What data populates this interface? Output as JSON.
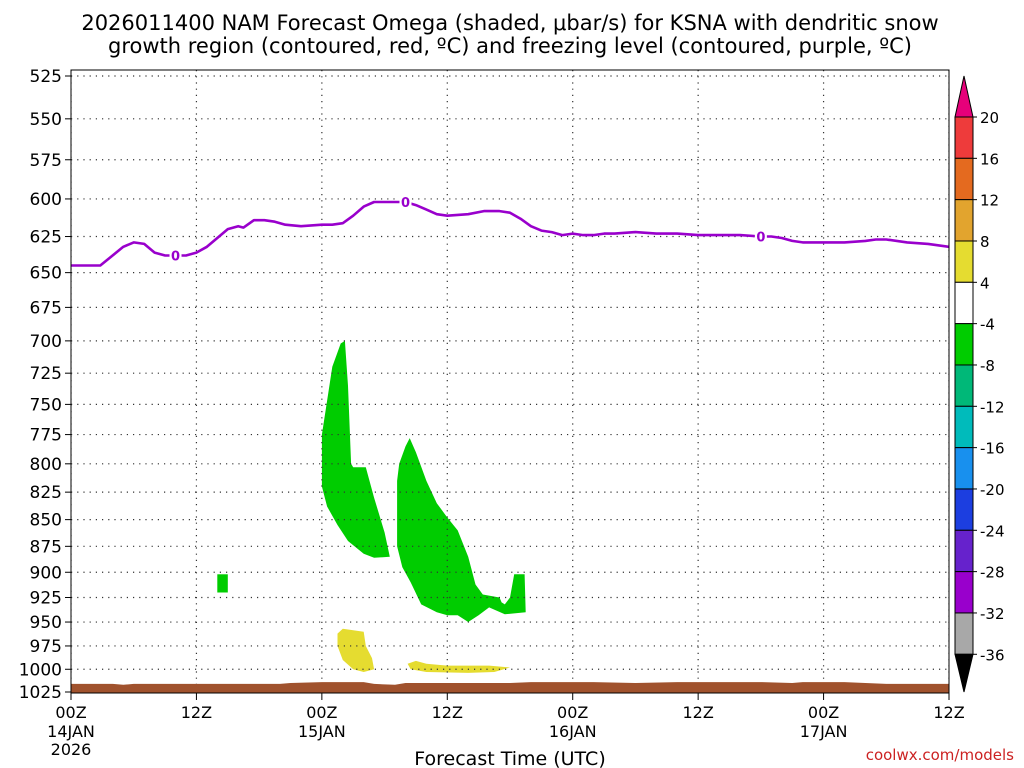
{
  "chart_data": {
    "type": "time-height cross section",
    "title_lines": [
      "2026011400 NAM Forecast Omega (shaded, μbar/s) for KSNA with dendritic snow",
      "growth region (contoured, red, ºC) and freezing level (contoured, purple, ºC)"
    ],
    "xlabel": "Forecast Time (UTC)",
    "credit": "coolwx.com/models",
    "x_range_hours": [
      0,
      84
    ],
    "x_ticks": [
      {
        "hour": 0,
        "label": "00Z",
        "date": "14JAN",
        "year": "2026"
      },
      {
        "hour": 12,
        "label": "12Z",
        "date": "",
        "year": ""
      },
      {
        "hour": 24,
        "label": "00Z",
        "date": "15JAN",
        "year": ""
      },
      {
        "hour": 36,
        "label": "12Z",
        "date": "",
        "year": ""
      },
      {
        "hour": 48,
        "label": "00Z",
        "date": "16JAN",
        "year": ""
      },
      {
        "hour": 60,
        "label": "12Z",
        "date": "",
        "year": ""
      },
      {
        "hour": 72,
        "label": "00Z",
        "date": "17JAN",
        "year": ""
      },
      {
        "hour": 84,
        "label": "12Z",
        "date": "",
        "year": ""
      }
    ],
    "y_ticks_hpa": [
      525,
      550,
      575,
      600,
      625,
      650,
      675,
      700,
      725,
      750,
      775,
      800,
      825,
      850,
      875,
      900,
      925,
      950,
      975,
      1000,
      1025
    ],
    "freezing_level": {
      "color": "#9900cc",
      "label": "0",
      "label_hours": [
        10,
        32,
        66
      ],
      "points": [
        [
          0,
          645
        ],
        [
          2.8,
          645
        ],
        [
          5,
          632
        ],
        [
          6,
          629
        ],
        [
          7,
          630
        ],
        [
          8,
          636
        ],
        [
          9,
          638
        ],
        [
          10,
          638
        ],
        [
          11,
          638
        ],
        [
          12,
          636
        ],
        [
          13,
          632
        ],
        [
          14,
          626
        ],
        [
          15,
          620
        ],
        [
          16,
          618
        ],
        [
          16.5,
          619
        ],
        [
          17.5,
          614
        ],
        [
          18.5,
          614
        ],
        [
          19.5,
          615
        ],
        [
          20.5,
          617
        ],
        [
          22,
          618
        ],
        [
          24,
          617
        ],
        [
          25,
          617
        ],
        [
          26,
          616
        ],
        [
          27,
          611
        ],
        [
          28,
          605
        ],
        [
          29,
          602
        ],
        [
          30,
          602
        ],
        [
          31,
          602
        ],
        [
          32,
          602
        ],
        [
          33,
          604
        ],
        [
          34,
          607
        ],
        [
          35,
          610
        ],
        [
          36,
          611
        ],
        [
          38,
          610
        ],
        [
          39.5,
          608
        ],
        [
          41,
          608
        ],
        [
          42,
          609
        ],
        [
          43,
          613
        ],
        [
          44,
          618
        ],
        [
          45,
          621
        ],
        [
          46,
          622
        ],
        [
          47,
          624
        ],
        [
          48,
          623
        ],
        [
          49,
          624
        ],
        [
          50,
          624
        ],
        [
          51,
          623
        ],
        [
          52,
          623
        ],
        [
          54,
          622
        ],
        [
          56,
          623
        ],
        [
          58,
          623
        ],
        [
          60,
          624
        ],
        [
          62,
          624
        ],
        [
          64,
          624
        ],
        [
          66,
          625
        ],
        [
          67,
          625
        ],
        [
          68,
          626
        ],
        [
          69,
          628
        ],
        [
          70,
          629
        ],
        [
          72,
          629
        ],
        [
          74,
          629
        ],
        [
          76,
          628
        ],
        [
          77,
          627
        ],
        [
          78,
          627
        ],
        [
          80,
          629
        ],
        [
          82,
          630
        ],
        [
          84,
          632
        ]
      ]
    },
    "surface_terrain": {
      "color": "#a0522d",
      "points": [
        [
          0,
          1016
        ],
        [
          4,
          1016
        ],
        [
          5,
          1017
        ],
        [
          6,
          1016
        ],
        [
          20,
          1016
        ],
        [
          21,
          1015
        ],
        [
          24,
          1014
        ],
        [
          28,
          1014
        ],
        [
          29,
          1016
        ],
        [
          31,
          1017
        ],
        [
          32,
          1015
        ],
        [
          34,
          1015
        ],
        [
          42,
          1015
        ],
        [
          44,
          1014
        ],
        [
          50,
          1014
        ],
        [
          54,
          1015
        ],
        [
          58,
          1014
        ],
        [
          66,
          1014
        ],
        [
          69,
          1015
        ],
        [
          70,
          1014
        ],
        [
          74,
          1014
        ],
        [
          76,
          1015
        ],
        [
          78,
          1016
        ],
        [
          84,
          1016
        ]
      ]
    },
    "omega_regions": [
      {
        "color": "#00cc00",
        "value_range": "-8 to -4",
        "points": [
          [
            24,
            775
          ],
          [
            25,
            720
          ],
          [
            25.8,
            702
          ],
          [
            26.2,
            700
          ],
          [
            26.5,
            735
          ],
          [
            26.8,
            800
          ],
          [
            27,
            803
          ],
          [
            28.2,
            803
          ],
          [
            29,
            830
          ],
          [
            30,
            862
          ],
          [
            30.5,
            885
          ],
          [
            29,
            886
          ],
          [
            28,
            882
          ],
          [
            26.5,
            870
          ],
          [
            25.5,
            855
          ],
          [
            24.5,
            838
          ],
          [
            24,
            820
          ]
        ]
      },
      {
        "color": "#00cc00",
        "value_range": "-8 to -4",
        "points": [
          [
            31.4,
            800
          ],
          [
            32,
            785
          ],
          [
            32.4,
            778
          ],
          [
            33,
            790
          ],
          [
            34,
            815
          ],
          [
            35,
            835
          ],
          [
            36,
            848
          ],
          [
            37,
            860
          ],
          [
            38,
            885
          ],
          [
            38.7,
            912
          ],
          [
            39.4,
            922
          ],
          [
            41,
            925
          ],
          [
            41.2,
            930
          ],
          [
            41.5,
            932
          ],
          [
            42,
            925
          ],
          [
            42.4,
            902
          ],
          [
            43.4,
            902
          ],
          [
            43.5,
            940
          ],
          [
            41.5,
            942
          ],
          [
            40,
            935
          ],
          [
            39,
            943
          ],
          [
            38,
            950
          ],
          [
            37,
            943
          ],
          [
            36,
            943
          ],
          [
            35,
            940
          ],
          [
            33.5,
            932
          ],
          [
            32.5,
            910
          ],
          [
            31.7,
            895
          ],
          [
            31.2,
            875
          ],
          [
            31.2,
            815
          ]
        ]
      },
      {
        "color": "#00cc00",
        "value_range": "-8 to -4",
        "points": [
          [
            14,
            902
          ],
          [
            15,
            902
          ],
          [
            15,
            920
          ],
          [
            14,
            920
          ]
        ]
      },
      {
        "color": "#e5dc30",
        "value_range": "4 to 8",
        "points": [
          [
            25.5,
            962
          ],
          [
            26,
            957
          ],
          [
            28,
            960
          ],
          [
            28.2,
            975
          ],
          [
            28.8,
            988
          ],
          [
            29,
            1000
          ],
          [
            28,
            1003
          ],
          [
            27,
            1000
          ],
          [
            26,
            990
          ],
          [
            25.5,
            975
          ]
        ]
      },
      {
        "color": "#e5dc30",
        "value_range": "4 to 8",
        "points": [
          [
            32.2,
            994
          ],
          [
            33,
            991
          ],
          [
            34,
            994
          ],
          [
            36,
            996
          ],
          [
            38,
            996
          ],
          [
            40,
            996
          ],
          [
            42,
            998
          ],
          [
            40.5,
            1003
          ],
          [
            38,
            1004
          ],
          [
            34,
            1003
          ],
          [
            32.5,
            1000
          ]
        ]
      }
    ],
    "colorbar": {
      "unit": "μbar/s",
      "tick_labels": [
        "20",
        "16",
        "12",
        "8",
        "4",
        "-4",
        "-8",
        "-12",
        "-16",
        "-20",
        "-24",
        "-28",
        "-32",
        "-36"
      ],
      "segments": [
        {
          "range": "> 20",
          "color": "#e6007a"
        },
        {
          "range": "16 to 20",
          "color": "#ee3b3b"
        },
        {
          "range": "12 to 16",
          "color": "#e46a1f"
        },
        {
          "range": "8 to 12",
          "color": "#e2a42e"
        },
        {
          "range": "4 to 8",
          "color": "#e5dc30"
        },
        {
          "range": "-4 to 4",
          "color": "#ffffff"
        },
        {
          "range": "-8 to -4",
          "color": "#00cc00"
        },
        {
          "range": "-12 to -8",
          "color": "#00b878"
        },
        {
          "range": "-16 to -12",
          "color": "#00bbbb"
        },
        {
          "range": "-20 to -16",
          "color": "#1890ee"
        },
        {
          "range": "-24 to -20",
          "color": "#1c3ee0"
        },
        {
          "range": "-28 to -24",
          "color": "#6622cc"
        },
        {
          "range": "-32 to -28",
          "color": "#9900cc"
        },
        {
          "range": "-36 to -32",
          "color": "#a8a8a8"
        },
        {
          "range": "< -36",
          "color": "#000000"
        }
      ]
    }
  }
}
